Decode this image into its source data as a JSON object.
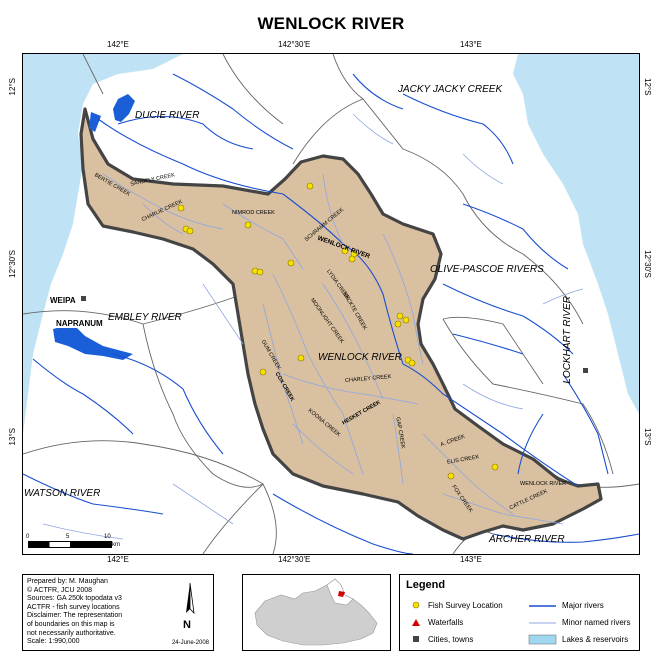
{
  "title": "WENLOCK RIVER",
  "lon_ticks": [
    "142°E",
    "142°30'E",
    "143°E"
  ],
  "lat_ticks": [
    "12°S",
    "12°30'S",
    "13°S"
  ],
  "basins": {
    "ducie": "DUCIE RIVER",
    "jacky": "JACKY JACKY CREEK",
    "olive": "OLIVE-PASCOE RIVERS",
    "lockhart": "LOCKHART RIVER",
    "embley": "EMBLEY RIVER",
    "wenlock": "WENLOCK RIVER",
    "watson": "WATSON RIVER",
    "archer": "ARCHER RIVER"
  },
  "towns": {
    "weipa": "WEIPA",
    "napranum": "NAPRANUM"
  },
  "creeks": {
    "bertiehaugh": "BERTIE CREEK",
    "sandfly": "SANDFLY CREEK",
    "charlie": "CHARLIE CREEK",
    "nimrod": "NIMROD CREEK",
    "schramm": "SCHRAMM CREEK",
    "wenlock_river": "WENLOCK RIVER",
    "lydia": "LYDIA CREEK",
    "neckter": "NECKTE CREEK",
    "moonlight": "MOONLIGHT CREEK",
    "gum": "GUM CREEK",
    "charley": "CHARLEY CREEK",
    "cox": "COX CREEK",
    "hesket": "HESKET CREEK",
    "koona": "KOONA CREEK",
    "gap": "GAP CREEK",
    "pidgeon": "A. CREEK",
    "pot": "ELIS CREEK",
    "fox": "FOX CREEK",
    "cattle": "CATTLE CREEK",
    "wenlock_upper": "WENLOCK RIVER"
  },
  "scale_bar": {
    "labels": [
      "0",
      "5",
      "10"
    ],
    "unit": "km"
  },
  "credits": {
    "lines": [
      "Prepared by: M. Maughan",
      "© ACTFR, JCU 2008",
      "Sources: GA 250k topodata v3",
      "ACTFR - fish survey locations",
      "Disclaimer: The representation",
      "of boundaries on this map is",
      "not necessarily authoritative.",
      "Scale: 1:990,000"
    ],
    "date": "24-June-2008",
    "north": "N"
  },
  "legend": {
    "title": "Legend",
    "fish": "Fish Survey Location",
    "waterfalls": "Waterfalls",
    "towns": "Cities, towns",
    "major": "Major rivers",
    "minor": "Minor named rivers",
    "lakes": "Lakes & reservoirs"
  },
  "colors": {
    "catchment": "#d9c0a0",
    "sea": "#bfe3f5",
    "major_river": "#1a4fcf",
    "minor_river": "#8fa7e0",
    "fish": "#f7e000",
    "waterfall": "#d40000",
    "lake": "#9fd7f0"
  }
}
